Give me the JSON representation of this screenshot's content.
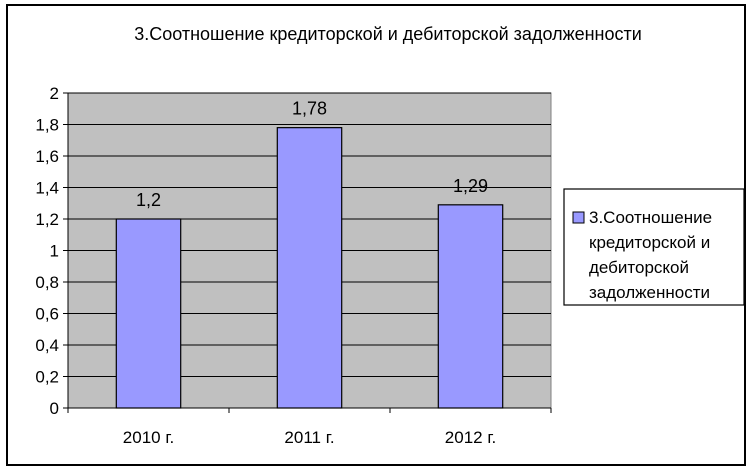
{
  "chart_data": {
    "type": "bar",
    "title": "3.Соотношение кредиторской  и дебиторской задолженности",
    "categories": [
      "2010  г.",
      "2011  г.",
      "2012  г."
    ],
    "series": [
      {
        "name": "3.Соотношение кредиторской  и дебиторской задолженности",
        "values": [
          1.2,
          1.78,
          1.29
        ],
        "data_labels": [
          "1,2",
          "1,78",
          "1,29"
        ]
      }
    ],
    "ylim": [
      0,
      2
    ],
    "yticks": [
      0,
      0.2,
      0.4,
      0.6,
      0.8,
      1,
      1.2,
      1.4,
      1.6,
      1.8,
      2
    ],
    "ytick_labels": [
      "0",
      "0,2",
      "0,4",
      "0,6",
      "0,8",
      "1",
      "1,2",
      "1,4",
      "1,6",
      "1,8",
      "2"
    ],
    "xlabel": "",
    "ylabel": "",
    "grid": true,
    "legend_position": "right",
    "legend_lines": [
      "3.Соотношение",
      "кредиторской  и",
      "дебиторской",
      "задолженности"
    ],
    "colors": {
      "bar": "#9999ff",
      "plot_bg": "#c0c0c0",
      "grid": "#000000"
    }
  }
}
